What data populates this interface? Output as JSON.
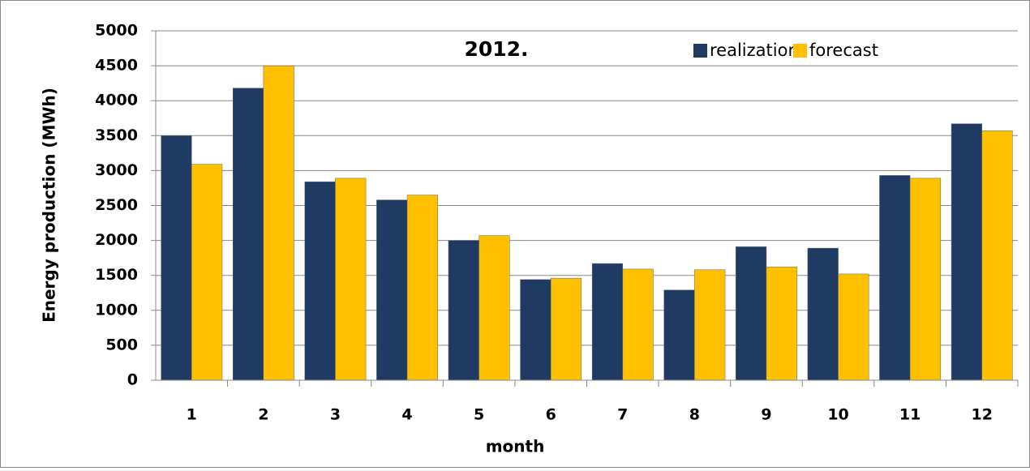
{
  "chart_data": {
    "type": "bar",
    "title": "2012.",
    "x_label": "month",
    "y_label": "Energy production (MWh)",
    "categories": [
      "1",
      "2",
      "3",
      "4",
      "5",
      "6",
      "7",
      "8",
      "9",
      "10",
      "11",
      "12"
    ],
    "series": [
      {
        "name": "realization",
        "color": "#1f3b63",
        "values": [
          3500,
          4180,
          2840,
          2580,
          2000,
          1440,
          1670,
          1290,
          1910,
          1890,
          2930,
          3670
        ]
      },
      {
        "name": "forecast",
        "color": "#ffc000",
        "values": [
          3090,
          4500,
          2890,
          2650,
          2070,
          1460,
          1590,
          1580,
          1620,
          1520,
          2890,
          3570
        ]
      }
    ],
    "ylim": [
      0,
      5000
    ],
    "yticks": [
      0,
      500,
      1000,
      1500,
      2000,
      2500,
      3000,
      3500,
      4000,
      4500,
      5000
    ],
    "grid": true,
    "legend": "top-right"
  }
}
